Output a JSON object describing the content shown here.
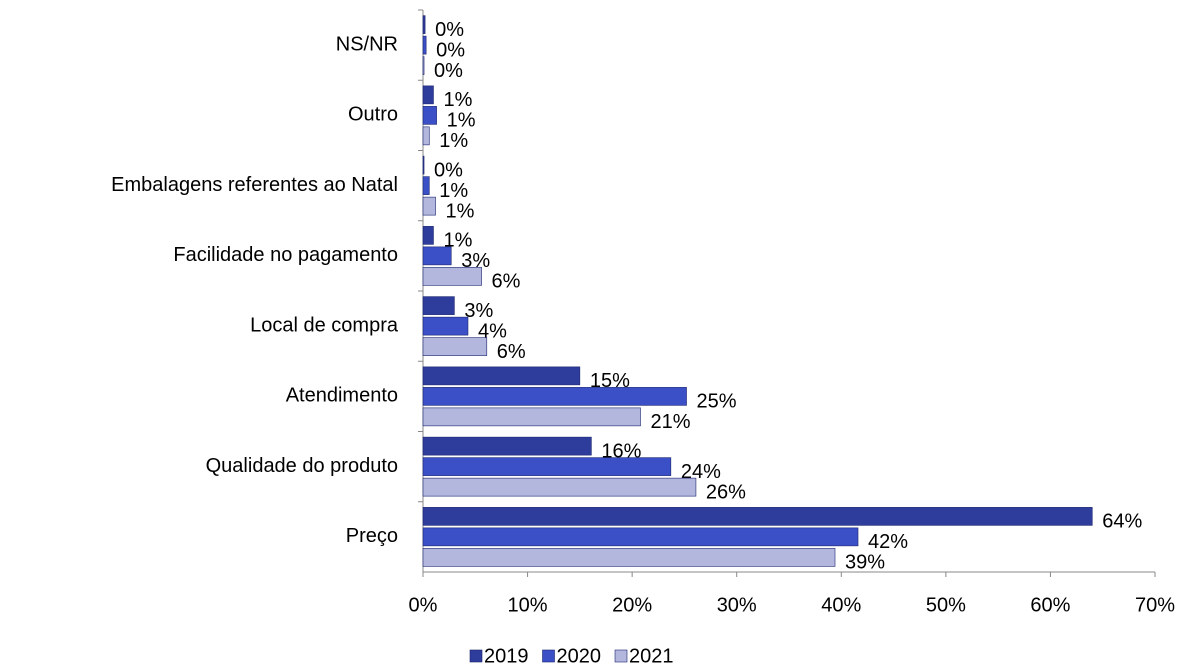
{
  "chart_data": {
    "type": "hbar",
    "categories": [
      "NS/NR",
      "Outro",
      "Embalagens referentes ao Natal",
      "Facilidade no pagamento",
      "Local de compra",
      "Atendimento",
      "Qualidade do produto",
      "Preço"
    ],
    "series": [
      {
        "name": "2019",
        "color": "#2e3c9c",
        "values": [
          0.2,
          1.0,
          0.1,
          1.0,
          3.0,
          15.0,
          16.1,
          64.0
        ],
        "value_labels": [
          "0%",
          "1%",
          "0%",
          "1%",
          "3%",
          "15%",
          "16%",
          "64%"
        ]
      },
      {
        "name": "2020",
        "color": "#3b4fc6",
        "values": [
          0.3,
          1.3,
          0.6,
          2.7,
          4.3,
          25.2,
          23.7,
          41.6
        ],
        "value_labels": [
          "0%",
          "1%",
          "1%",
          "3%",
          "4%",
          "25%",
          "24%",
          "42%"
        ]
      },
      {
        "name": "2021",
        "color": "#b3b7dd",
        "values": [
          0.1,
          0.6,
          1.2,
          5.6,
          6.1,
          20.8,
          26.1,
          39.4
        ],
        "value_labels": [
          "0%",
          "1%",
          "1%",
          "6%",
          "6%",
          "21%",
          "26%",
          "39%"
        ]
      }
    ],
    "xlim": [
      0,
      70
    ],
    "xticks": [
      {
        "value": 0,
        "label": "0%"
      },
      {
        "value": 10,
        "label": "10%"
      },
      {
        "value": 20,
        "label": "20%"
      },
      {
        "value": 30,
        "label": "30%"
      },
      {
        "value": 40,
        "label": "40%"
      },
      {
        "value": 50,
        "label": "50%"
      },
      {
        "value": 60,
        "label": "60%"
      },
      {
        "value": 70,
        "label": "70%"
      }
    ],
    "legend": "bottom"
  }
}
